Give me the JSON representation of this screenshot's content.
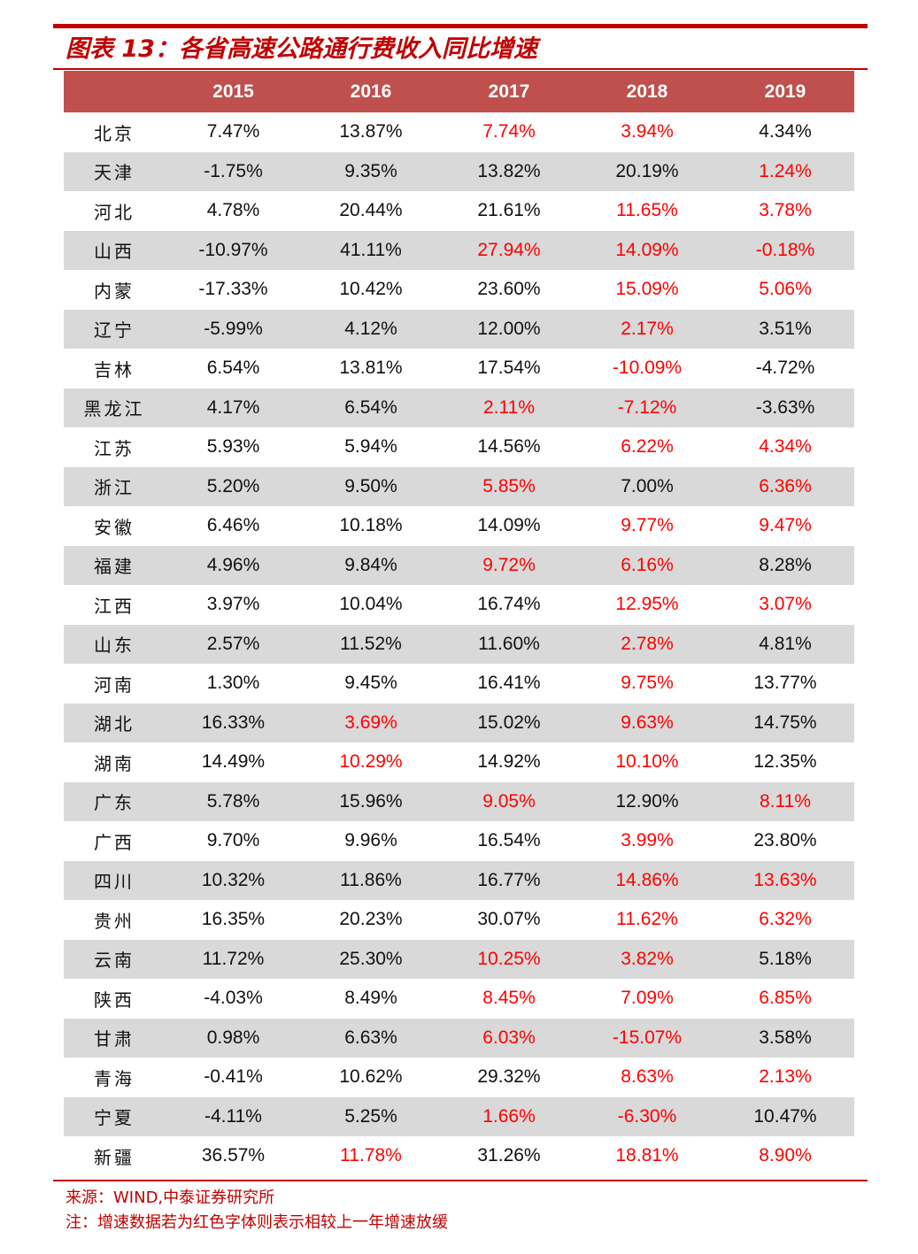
{
  "title": "图表 13：各省高速公路通行费收入同比增速",
  "colors": {
    "accent": "#c00000",
    "header_bg": "#c0504d",
    "stripe": "#d9d9d9",
    "slowdown_text": "#ff0000"
  },
  "table": {
    "corner": "",
    "columns": [
      "2015",
      "2016",
      "2017",
      "2018",
      "2019"
    ],
    "rows": [
      {
        "province": "北京",
        "values": [
          "7.47%",
          "13.87%",
          "7.74%",
          "3.94%",
          "4.34%"
        ],
        "red": [
          false,
          false,
          true,
          true,
          false
        ]
      },
      {
        "province": "天津",
        "values": [
          "-1.75%",
          "9.35%",
          "13.82%",
          "20.19%",
          "1.24%"
        ],
        "red": [
          false,
          false,
          false,
          false,
          true
        ]
      },
      {
        "province": "河北",
        "values": [
          "4.78%",
          "20.44%",
          "21.61%",
          "11.65%",
          "3.78%"
        ],
        "red": [
          false,
          false,
          false,
          true,
          true
        ]
      },
      {
        "province": "山西",
        "values": [
          "-10.97%",
          "41.11%",
          "27.94%",
          "14.09%",
          "-0.18%"
        ],
        "red": [
          false,
          false,
          true,
          true,
          true
        ]
      },
      {
        "province": "内蒙",
        "values": [
          "-17.33%",
          "10.42%",
          "23.60%",
          "15.09%",
          "5.06%"
        ],
        "red": [
          false,
          false,
          false,
          true,
          true
        ]
      },
      {
        "province": "辽宁",
        "values": [
          "-5.99%",
          "4.12%",
          "12.00%",
          "2.17%",
          "3.51%"
        ],
        "red": [
          false,
          false,
          false,
          true,
          false
        ]
      },
      {
        "province": "吉林",
        "values": [
          "6.54%",
          "13.81%",
          "17.54%",
          "-10.09%",
          "-4.72%"
        ],
        "red": [
          false,
          false,
          false,
          true,
          false
        ]
      },
      {
        "province": "黑龙江",
        "values": [
          "4.17%",
          "6.54%",
          "2.11%",
          "-7.12%",
          "-3.63%"
        ],
        "red": [
          false,
          false,
          true,
          true,
          false
        ]
      },
      {
        "province": "江苏",
        "values": [
          "5.93%",
          "5.94%",
          "14.56%",
          "6.22%",
          "4.34%"
        ],
        "red": [
          false,
          false,
          false,
          true,
          true
        ]
      },
      {
        "province": "浙江",
        "values": [
          "5.20%",
          "9.50%",
          "5.85%",
          "7.00%",
          "6.36%"
        ],
        "red": [
          false,
          false,
          true,
          false,
          true
        ]
      },
      {
        "province": "安徽",
        "values": [
          "6.46%",
          "10.18%",
          "14.09%",
          "9.77%",
          "9.47%"
        ],
        "red": [
          false,
          false,
          false,
          true,
          true
        ]
      },
      {
        "province": "福建",
        "values": [
          "4.96%",
          "9.84%",
          "9.72%",
          "6.16%",
          "8.28%"
        ],
        "red": [
          false,
          false,
          true,
          true,
          false
        ]
      },
      {
        "province": "江西",
        "values": [
          "3.97%",
          "10.04%",
          "16.74%",
          "12.95%",
          "3.07%"
        ],
        "red": [
          false,
          false,
          false,
          true,
          true
        ]
      },
      {
        "province": "山东",
        "values": [
          "2.57%",
          "11.52%",
          "11.60%",
          "2.78%",
          "4.81%"
        ],
        "red": [
          false,
          false,
          false,
          true,
          false
        ]
      },
      {
        "province": "河南",
        "values": [
          "1.30%",
          "9.45%",
          "16.41%",
          "9.75%",
          "13.77%"
        ],
        "red": [
          false,
          false,
          false,
          true,
          false
        ]
      },
      {
        "province": "湖北",
        "values": [
          "16.33%",
          "3.69%",
          "15.02%",
          "9.63%",
          "14.75%"
        ],
        "red": [
          false,
          true,
          false,
          true,
          false
        ]
      },
      {
        "province": "湖南",
        "values": [
          "14.49%",
          "10.29%",
          "14.92%",
          "10.10%",
          "12.35%"
        ],
        "red": [
          false,
          true,
          false,
          true,
          false
        ]
      },
      {
        "province": "广东",
        "values": [
          "5.78%",
          "15.96%",
          "9.05%",
          "12.90%",
          "8.11%"
        ],
        "red": [
          false,
          false,
          true,
          false,
          true
        ]
      },
      {
        "province": "广西",
        "values": [
          "9.70%",
          "9.96%",
          "16.54%",
          "3.99%",
          "23.80%"
        ],
        "red": [
          false,
          false,
          false,
          true,
          false
        ]
      },
      {
        "province": "四川",
        "values": [
          "10.32%",
          "11.86%",
          "16.77%",
          "14.86%",
          "13.63%"
        ],
        "red": [
          false,
          false,
          false,
          true,
          true
        ]
      },
      {
        "province": "贵州",
        "values": [
          "16.35%",
          "20.23%",
          "30.07%",
          "11.62%",
          "6.32%"
        ],
        "red": [
          false,
          false,
          false,
          true,
          true
        ]
      },
      {
        "province": "云南",
        "values": [
          "11.72%",
          "25.30%",
          "10.25%",
          "3.82%",
          "5.18%"
        ],
        "red": [
          false,
          false,
          true,
          true,
          false
        ]
      },
      {
        "province": "陕西",
        "values": [
          "-4.03%",
          "8.49%",
          "8.45%",
          "7.09%",
          "6.85%"
        ],
        "red": [
          false,
          false,
          true,
          true,
          true
        ]
      },
      {
        "province": "甘肃",
        "values": [
          "0.98%",
          "6.63%",
          "6.03%",
          "-15.07%",
          "3.58%"
        ],
        "red": [
          false,
          false,
          true,
          true,
          false
        ]
      },
      {
        "province": "青海",
        "values": [
          "-0.41%",
          "10.62%",
          "29.32%",
          "8.63%",
          "2.13%"
        ],
        "red": [
          false,
          false,
          false,
          true,
          true
        ]
      },
      {
        "province": "宁夏",
        "values": [
          "-4.11%",
          "5.25%",
          "1.66%",
          "-6.30%",
          "10.47%"
        ],
        "red": [
          false,
          false,
          true,
          true,
          false
        ]
      },
      {
        "province": "新疆",
        "values": [
          "36.57%",
          "11.78%",
          "31.26%",
          "18.81%",
          "8.90%"
        ],
        "red": [
          false,
          true,
          false,
          true,
          true
        ]
      }
    ]
  },
  "source": "来源：WIND,中泰证券研究所",
  "footnote": "注：增速数据若为红色字体则表示相较上一年增速放缓"
}
